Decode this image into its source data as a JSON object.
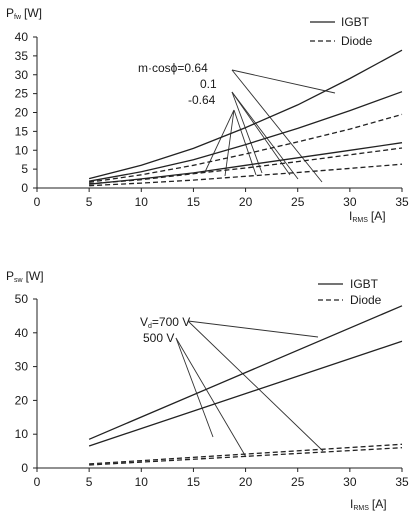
{
  "chart_data": [
    {
      "type": "line",
      "ylabel": "P",
      "ylabel_sub": "fw",
      "ylabel_unit": "[W]",
      "xlabel": "I",
      "xlabel_sub": "RMS",
      "xlabel_unit": "[A]",
      "xlim": [
        0,
        35
      ],
      "ylim": [
        0,
        40
      ],
      "x_ticks": [
        0,
        5,
        10,
        15,
        20,
        25,
        30,
        35
      ],
      "y_ticks": [
        0,
        5,
        10,
        15,
        20,
        25,
        30,
        35,
        40
      ],
      "legend": {
        "position": "top-right",
        "entries": [
          {
            "label": "IGBT",
            "style": "solid"
          },
          {
            "label": "Diode",
            "style": "dashed"
          }
        ]
      },
      "annotations": [
        "m·cosϕ=0.64",
        "0.1",
        "-0.64"
      ],
      "x": [
        5,
        10,
        15,
        20,
        25,
        30,
        35
      ],
      "series": [
        {
          "device": "IGBT",
          "param": "m·cosϕ=0.64",
          "values": [
            2.5,
            6.0,
            10.5,
            16.0,
            22.0,
            29.0,
            36.5
          ]
        },
        {
          "device": "IGBT",
          "param": "0.1",
          "values": [
            1.8,
            4.3,
            7.5,
            11.5,
            15.8,
            20.5,
            25.5
          ]
        },
        {
          "device": "IGBT",
          "param": "-0.64",
          "values": [
            1.0,
            2.4,
            4.0,
            6.0,
            8.0,
            10.0,
            12.0
          ]
        },
        {
          "device": "Diode",
          "param": "m·cosϕ=0.64",
          "values": [
            1.5,
            3.5,
            6.0,
            9.0,
            12.2,
            15.6,
            19.5
          ]
        },
        {
          "device": "Diode",
          "param": "0.1",
          "values": [
            1.1,
            2.2,
            3.8,
            5.3,
            7.0,
            8.8,
            10.6
          ]
        },
        {
          "device": "Diode",
          "param": "-0.64",
          "values": [
            0.6,
            1.3,
            2.1,
            3.1,
            4.1,
            5.2,
            6.3
          ]
        }
      ]
    },
    {
      "type": "line",
      "ylabel": "P",
      "ylabel_sub": "sw",
      "ylabel_unit": "[W]",
      "xlabel": "I",
      "xlabel_sub": "RMS",
      "xlabel_unit": "[A]",
      "xlim": [
        0,
        35
      ],
      "ylim": [
        0,
        50
      ],
      "x_ticks": [
        0,
        5,
        10,
        15,
        20,
        25,
        30,
        35
      ],
      "y_ticks": [
        0,
        10,
        20,
        30,
        40,
        50
      ],
      "legend": {
        "position": "top-right",
        "entries": [
          {
            "label": "IGBT",
            "style": "solid"
          },
          {
            "label": "Diode",
            "style": "dashed"
          }
        ]
      },
      "annotations": [
        "V",
        "d",
        "=700 V",
        "500 V"
      ],
      "x": [
        5,
        35
      ],
      "series": [
        {
          "device": "IGBT",
          "param": "700 V",
          "values": [
            8.5,
            48.0
          ]
        },
        {
          "device": "IGBT",
          "param": "500 V",
          "values": [
            6.5,
            37.5
          ]
        },
        {
          "device": "Diode",
          "param": "700 V",
          "values": [
            1.2,
            7.0
          ]
        },
        {
          "device": "Diode",
          "param": "500 V",
          "values": [
            0.9,
            6.0
          ]
        }
      ]
    }
  ]
}
